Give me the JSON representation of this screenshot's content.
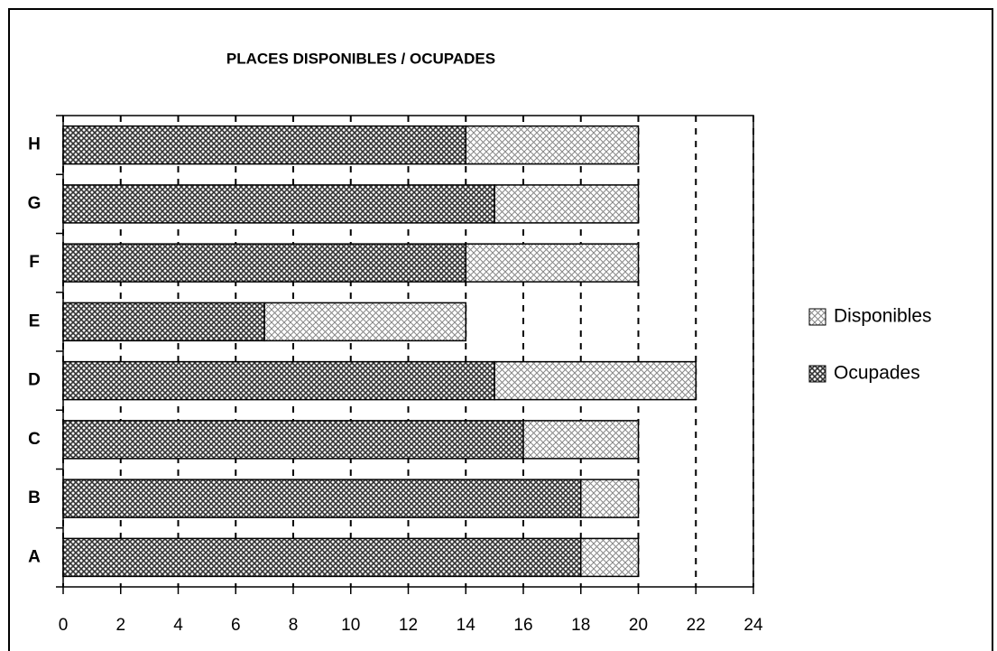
{
  "chart_data": {
    "type": "stacked_barh",
    "title": "PLACES DISPONIBLES / OCUPADES",
    "categories": [
      "A",
      "B",
      "C",
      "D",
      "E",
      "F",
      "G",
      "H"
    ],
    "series": [
      {
        "name": "Ocupades",
        "color": "#333333",
        "values": [
          18,
          18,
          16,
          15,
          7,
          14,
          15,
          14
        ]
      },
      {
        "name": "Disponibles",
        "color": "#888888",
        "values": [
          2,
          2,
          4,
          7,
          7,
          6,
          5,
          6
        ]
      }
    ],
    "xlim": [
      0,
      24
    ],
    "xticks": [
      0,
      2,
      4,
      6,
      8,
      10,
      12,
      14,
      16,
      18,
      20,
      22,
      24
    ],
    "grid": true,
    "legend": "right"
  }
}
